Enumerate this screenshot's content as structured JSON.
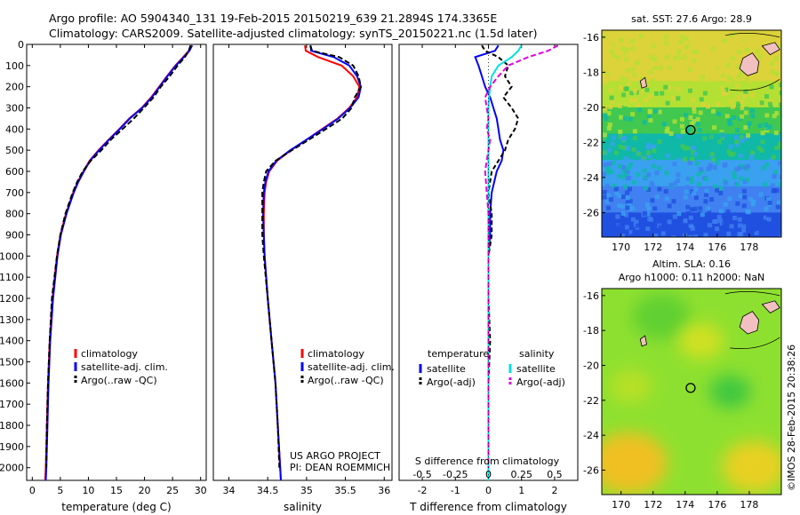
{
  "header": {
    "line1": "Argo profile: AO 5904340_131 19-Feb-2015 20150219_639 21.2894S 174.3365E",
    "line2": "Climatology: CARS2009. Satellite-adjusted climatology: synTS_20150221.nc (1.5d later)"
  },
  "stamp": "©IMOS 28-Feb-2015 20:38:26",
  "colors": {
    "climatology": "#ff0000",
    "satellite": "#0000ff",
    "argo": "#000000",
    "satellite_salinity": "#00e0e0",
    "argo_salinity_adj": "#e000e0"
  },
  "chart_data": [
    {
      "id": "temperature",
      "type": "line",
      "xlabel": "temperature (deg C)",
      "ylabel": "",
      "xlim": [
        -1,
        31
      ],
      "ylim": [
        2060,
        0
      ],
      "xticks": [
        0,
        5,
        10,
        15,
        20,
        25,
        30
      ],
      "yticks": [
        0,
        100,
        200,
        300,
        400,
        500,
        600,
        700,
        800,
        900,
        1000,
        1100,
        1200,
        1300,
        1400,
        1500,
        1600,
        1700,
        1800,
        1900,
        2000
      ],
      "legend": [
        "climatology",
        "satellite-adj. clim.",
        "Argo(..raw -QC)"
      ],
      "legend_position": "lower-left",
      "depth": [
        5,
        30,
        60,
        100,
        150,
        200,
        250,
        300,
        350,
        400,
        450,
        500,
        550,
        600,
        650,
        700,
        800,
        900,
        1000,
        1200,
        1400,
        1600,
        1800,
        2000,
        2060
      ],
      "series": [
        {
          "name": "climatology",
          "color": "#ff0000",
          "dash": "",
          "values": [
            28.3,
            27.9,
            26.9,
            25.5,
            24.0,
            22.6,
            21.2,
            19.5,
            17.3,
            15.5,
            13.6,
            11.8,
            10.2,
            9.1,
            8.1,
            7.3,
            6.0,
            5.0,
            4.4,
            3.6,
            3.1,
            2.8,
            2.6,
            2.4,
            2.3
          ]
        },
        {
          "name": "satellite-adj. clim.",
          "color": "#0000ff",
          "dash": "",
          "values": [
            28.5,
            28.0,
            27.0,
            25.6,
            24.1,
            22.7,
            21.3,
            19.6,
            17.4,
            15.6,
            13.7,
            11.9,
            10.3,
            9.2,
            8.2,
            7.4,
            6.1,
            5.1,
            4.5,
            3.7,
            3.2,
            2.9,
            2.7,
            2.5,
            2.4
          ]
        },
        {
          "name": "Argo(..raw -QC)",
          "color": "#000000",
          "dash": "6 3",
          "values": [
            28.2,
            27.9,
            27.2,
            25.9,
            24.5,
            22.9,
            21.6,
            19.9,
            18.1,
            16.1,
            14.0,
            12.3,
            10.4,
            9.0,
            8.0,
            7.2,
            5.9,
            5.0,
            4.4,
            3.5,
            3.1,
            2.8,
            2.6,
            2.5,
            null
          ]
        }
      ]
    },
    {
      "id": "salinity",
      "type": "line",
      "xlabel": "salinity",
      "ylabel": "",
      "xlim": [
        33.8,
        36.1
      ],
      "ylim": [
        2060,
        0
      ],
      "xticks": [
        34,
        34.5,
        35,
        35.5,
        36
      ],
      "legend": [
        "climatology",
        "satellite-adj. clim.",
        "Argo(..raw -QC)"
      ],
      "legend_position": "lower-right",
      "annotations": [
        "US ARGO PROJECT",
        "PI: DEAN ROEMMICH"
      ],
      "depth": [
        5,
        30,
        60,
        100,
        150,
        200,
        250,
        300,
        350,
        400,
        450,
        500,
        550,
        600,
        650,
        700,
        800,
        900,
        1000,
        1200,
        1400,
        1600,
        1800,
        2000,
        2060
      ],
      "series": [
        {
          "name": "climatology",
          "color": "#ff0000",
          "dash": "",
          "values": [
            34.98,
            34.99,
            35.15,
            35.45,
            35.6,
            35.68,
            35.65,
            35.55,
            35.4,
            35.2,
            35.0,
            34.8,
            34.62,
            34.52,
            34.48,
            34.46,
            34.45,
            34.45,
            34.46,
            34.5,
            34.55,
            34.6,
            34.63,
            34.66,
            34.67
          ]
        },
        {
          "name": "satellite-adj. clim.",
          "color": "#0000ff",
          "dash": "",
          "values": [
            35.05,
            35.06,
            35.35,
            35.55,
            35.65,
            35.7,
            35.67,
            35.56,
            35.41,
            35.21,
            35.0,
            34.79,
            34.61,
            34.51,
            34.47,
            34.45,
            34.44,
            34.45,
            34.46,
            34.5,
            34.55,
            34.6,
            34.63,
            34.66,
            34.67
          ]
        },
        {
          "name": "Argo(..raw -QC)",
          "color": "#000000",
          "dash": "6 3",
          "values": [
            35.05,
            35.07,
            35.42,
            35.6,
            35.67,
            35.7,
            35.62,
            35.58,
            35.46,
            35.25,
            35.03,
            34.81,
            34.6,
            34.48,
            34.45,
            34.43,
            34.43,
            34.43,
            34.45,
            34.5,
            34.55,
            34.6,
            34.63,
            34.65,
            null
          ]
        }
      ]
    },
    {
      "id": "difference",
      "type": "line",
      "xlabel": "T difference from climatology",
      "top_label": "S difference from climatology",
      "xlim": [
        -2.7,
        2.7
      ],
      "ylim": [
        2060,
        0
      ],
      "xticks": [
        -2,
        -1,
        0,
        1,
        2
      ],
      "top_ticks": [
        "-0.5",
        "-0.25",
        "0",
        "0.25",
        "0.5"
      ],
      "top_tick_positions": [
        -2,
        -1,
        0,
        1,
        2
      ],
      "legend": [
        "temperature",
        "satellite",
        "Argo(-adj)",
        "salinity",
        "satellite",
        "Argo(-adj)"
      ],
      "depth": [
        5,
        30,
        60,
        100,
        150,
        200,
        250,
        300,
        350,
        400,
        450,
        500,
        550,
        600,
        700,
        800,
        900,
        1000,
        1200,
        1400,
        1600,
        1800,
        2000,
        2060
      ],
      "series": [
        {
          "name": "temperature satellite",
          "color": "#0000ff",
          "dash": "",
          "values": [
            0.3,
            0.2,
            -0.4,
            -0.3,
            -0.2,
            -0.1,
            0.05,
            0.15,
            0.25,
            0.3,
            0.35,
            0.45,
            0.4,
            0.25,
            0.1,
            0.05,
            0.05,
            0.0,
            0.0,
            0.0,
            0.0,
            0.0,
            0.0,
            0.0
          ]
        },
        {
          "name": "temperature Argo(-adj)",
          "color": "#000000",
          "dash": "5 3",
          "values": [
            -0.2,
            -0.1,
            0.3,
            0.6,
            0.5,
            0.7,
            0.45,
            0.7,
            0.9,
            0.8,
            0.6,
            0.5,
            0.3,
            0.1,
            0.0,
            0.1,
            0.1,
            0.0,
            0.0,
            0.05,
            0.0,
            0.0,
            0.0,
            null
          ]
        },
        {
          "name": "salinity satellite",
          "color": "#00e0e0",
          "dash": "",
          "values": [
            1.0,
            0.9,
            0.7,
            0.3,
            0.1,
            0.05,
            0.02,
            0.0,
            0.0,
            0.0,
            0.0,
            0.0,
            0.0,
            0.0,
            0.0,
            0.0,
            0.0,
            0.0,
            0.0,
            0.0,
            0.0,
            0.0,
            0.0,
            0.0
          ]
        },
        {
          "name": "salinity Argo(-adj)",
          "color": "#e000e0",
          "dash": "6 3",
          "values": [
            2.1,
            1.8,
            1.2,
            0.6,
            0.3,
            0.05,
            -0.1,
            -0.05,
            0.0,
            -0.05,
            0.05,
            0.0,
            -0.05,
            -0.1,
            -0.05,
            0.0,
            0.0,
            0.0,
            0.0,
            0.0,
            0.0,
            0.0,
            0.0,
            null
          ]
        }
      ]
    },
    {
      "id": "sst-map",
      "type": "heatmap",
      "title": "sat. SST: 27.6  Argo: 28.9",
      "xlim": [
        168.8,
        180.0
      ],
      "ylim": [
        -27.4,
        -15.6
      ],
      "xticks": [
        170,
        172,
        174,
        176,
        178
      ],
      "yticks": [
        -16,
        -18,
        -20,
        -22,
        -24,
        -26
      ],
      "marker": {
        "lon": 174.34,
        "lat": -21.29
      },
      "bands": [
        {
          "to_lat": -18.5,
          "color": "#dcd23a"
        },
        {
          "to_lat": -20.0,
          "color": "#b4e034"
        },
        {
          "to_lat": -21.5,
          "color": "#40c850"
        },
        {
          "to_lat": -23.0,
          "color": "#10b8a8"
        },
        {
          "to_lat": -24.5,
          "color": "#3aa0f0"
        },
        {
          "to_lat": -26.0,
          "color": "#4080f0"
        },
        {
          "to_lat": -27.4,
          "color": "#2050e0"
        }
      ]
    },
    {
      "id": "sla-map",
      "type": "heatmap",
      "title": "Altim. SLA: 0.16",
      "subtitle": "Argo h1000: 0.11 h2000: NaN",
      "xlim": [
        168.8,
        180.0
      ],
      "ylim": [
        -27.4,
        -15.6
      ],
      "xticks": [
        170,
        172,
        174,
        176,
        178
      ],
      "yticks": [
        -16,
        -18,
        -20,
        -22,
        -24,
        -26
      ],
      "marker": {
        "lon": 174.34,
        "lat": -21.29
      },
      "background": "#8ee030",
      "blobs": [
        {
          "lon": 170.5,
          "lat": -25.6,
          "r": 2.4,
          "color": "#f0c020"
        },
        {
          "lon": 178.3,
          "lat": -25.8,
          "r": 2.0,
          "color": "#e8d020"
        },
        {
          "lon": 172.5,
          "lat": -17.2,
          "r": 1.8,
          "color": "#60d030"
        },
        {
          "lon": 176.8,
          "lat": -21.5,
          "r": 1.3,
          "color": "#40c840"
        },
        {
          "lon": 175.0,
          "lat": -18.6,
          "r": 1.4,
          "color": "#d0e020"
        },
        {
          "lon": 170.6,
          "lat": -21.2,
          "r": 1.3,
          "color": "#b8e028"
        }
      ]
    }
  ]
}
